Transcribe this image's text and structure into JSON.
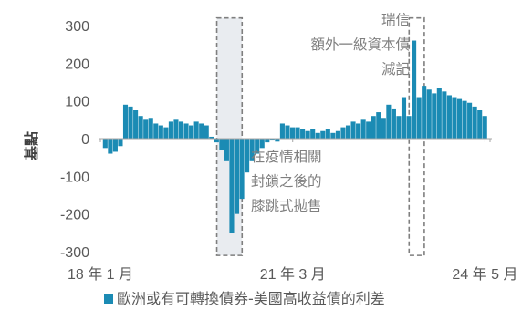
{
  "chart_data": {
    "type": "bar",
    "title": "",
    "xlabel": "",
    "ylabel": "基點",
    "ylim": [
      -300,
      300
    ],
    "yticks": [
      300,
      200,
      100,
      0,
      -100,
      -200,
      -300
    ],
    "xticks": [
      {
        "label": "18 年 1 月",
        "date": "2018-01"
      },
      {
        "label": "21 年 3 月",
        "date": "2021-03"
      },
      {
        "label": "24 年 5 月",
        "date": "2024-05"
      }
    ],
    "x_range": [
      "2018-01",
      "2024-06"
    ],
    "grid": false,
    "legend_position": "bottom",
    "series": [
      {
        "name": "歐洲或有可轉換債券-美國高收益債的利差",
        "color": "#1b8bb4",
        "x": [
          "2018-02",
          "2018-03",
          "2018-04",
          "2018-05",
          "2018-06",
          "2018-07",
          "2018-08",
          "2018-09",
          "2018-10",
          "2018-11",
          "2018-12",
          "2019-01",
          "2019-02",
          "2019-03",
          "2019-04",
          "2019-05",
          "2019-06",
          "2019-07",
          "2019-08",
          "2019-09",
          "2019-10",
          "2019-11",
          "2019-12",
          "2020-01",
          "2020-02",
          "2020-03",
          "2020-04",
          "2020-05",
          "2020-06",
          "2020-07",
          "2020-08",
          "2020-09",
          "2020-10",
          "2020-11",
          "2020-12",
          "2021-01",
          "2021-02",
          "2021-03",
          "2021-04",
          "2021-05",
          "2021-06",
          "2021-07",
          "2021-08",
          "2021-09",
          "2021-10",
          "2021-11",
          "2021-12",
          "2022-01",
          "2022-02",
          "2022-03",
          "2022-04",
          "2022-05",
          "2022-06",
          "2022-07",
          "2022-08",
          "2022-09",
          "2022-10",
          "2022-11",
          "2022-12",
          "2023-01",
          "2023-02",
          "2023-03",
          "2023-04",
          "2023-05",
          "2023-06",
          "2023-07",
          "2023-08",
          "2023-09",
          "2023-10",
          "2023-11",
          "2023-12",
          "2024-01",
          "2024-02",
          "2024-03",
          "2024-04",
          "2024-05"
        ],
        "values": [
          -25,
          -40,
          -35,
          -20,
          90,
          85,
          75,
          60,
          50,
          55,
          40,
          35,
          30,
          45,
          50,
          45,
          40,
          35,
          45,
          40,
          35,
          5,
          -10,
          -30,
          -60,
          -250,
          -200,
          -160,
          -90,
          -60,
          -40,
          -25,
          -10,
          -5,
          -8,
          40,
          35,
          30,
          30,
          25,
          20,
          25,
          15,
          20,
          25,
          15,
          20,
          30,
          35,
          45,
          40,
          50,
          45,
          60,
          70,
          55,
          90,
          80,
          60,
          110,
          60,
          260,
          110,
          140,
          130,
          120,
          135,
          125,
          115,
          110,
          105,
          100,
          95,
          85,
          75,
          60
        ]
      }
    ],
    "annotations": [
      {
        "lines": [
          "瑞信",
          "額外一級資本債",
          "減記"
        ]
      },
      {
        "lines": [
          "在疫情相關",
          "封鎖之後的",
          "膝跳式拋售"
        ]
      }
    ],
    "highlight_boxes": [
      {
        "from": "2019-12",
        "to": "2020-05",
        "ylim": [
          -310,
          320
        ]
      },
      {
        "from": "2023-02",
        "to": "2023-05",
        "ylim": [
          -310,
          320
        ]
      }
    ]
  }
}
